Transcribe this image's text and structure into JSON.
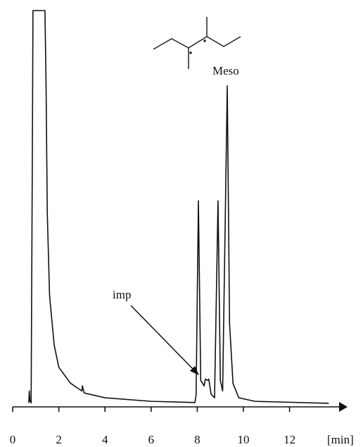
{
  "chart_data": {
    "type": "line",
    "x_label": "[min]",
    "annotations": [
      "Meso",
      "imp"
    ],
    "xlim": [
      0,
      14.5
    ],
    "xticks": [
      0,
      2,
      4,
      6,
      8,
      10,
      12
    ],
    "ylim": [
      0,
      100
    ],
    "series": [
      {
        "color": "#111111",
        "x": [
          0.67,
          0.7,
          0.72,
          0.75,
          0.8,
          0.85,
          0.88,
          1.4,
          1.45,
          1.5,
          1.6,
          1.8,
          2.0,
          2.5,
          3.0,
          3.02,
          3.1,
          4.0,
          6.0,
          7.9,
          7.95,
          8.05,
          8.15,
          8.3,
          8.35,
          8.45,
          8.5,
          8.6,
          8.75,
          8.9,
          9.0,
          9.1,
          9.3,
          9.4,
          9.55,
          9.8,
          10.5,
          13.7
        ],
        "values": [
          1.1,
          1.2,
          4,
          1.5,
          1,
          60,
          100,
          100,
          80,
          49,
          28,
          15.6,
          10,
          6,
          4,
          5.3,
          3.5,
          2.3,
          1.4,
          1.1,
          3,
          52,
          6.7,
          5.3,
          7,
          6.7,
          7,
          3.2,
          2.3,
          52,
          6.7,
          4,
          81,
          21,
          5.9,
          2.3,
          1.4,
          0.9
        ]
      }
    ]
  }
}
